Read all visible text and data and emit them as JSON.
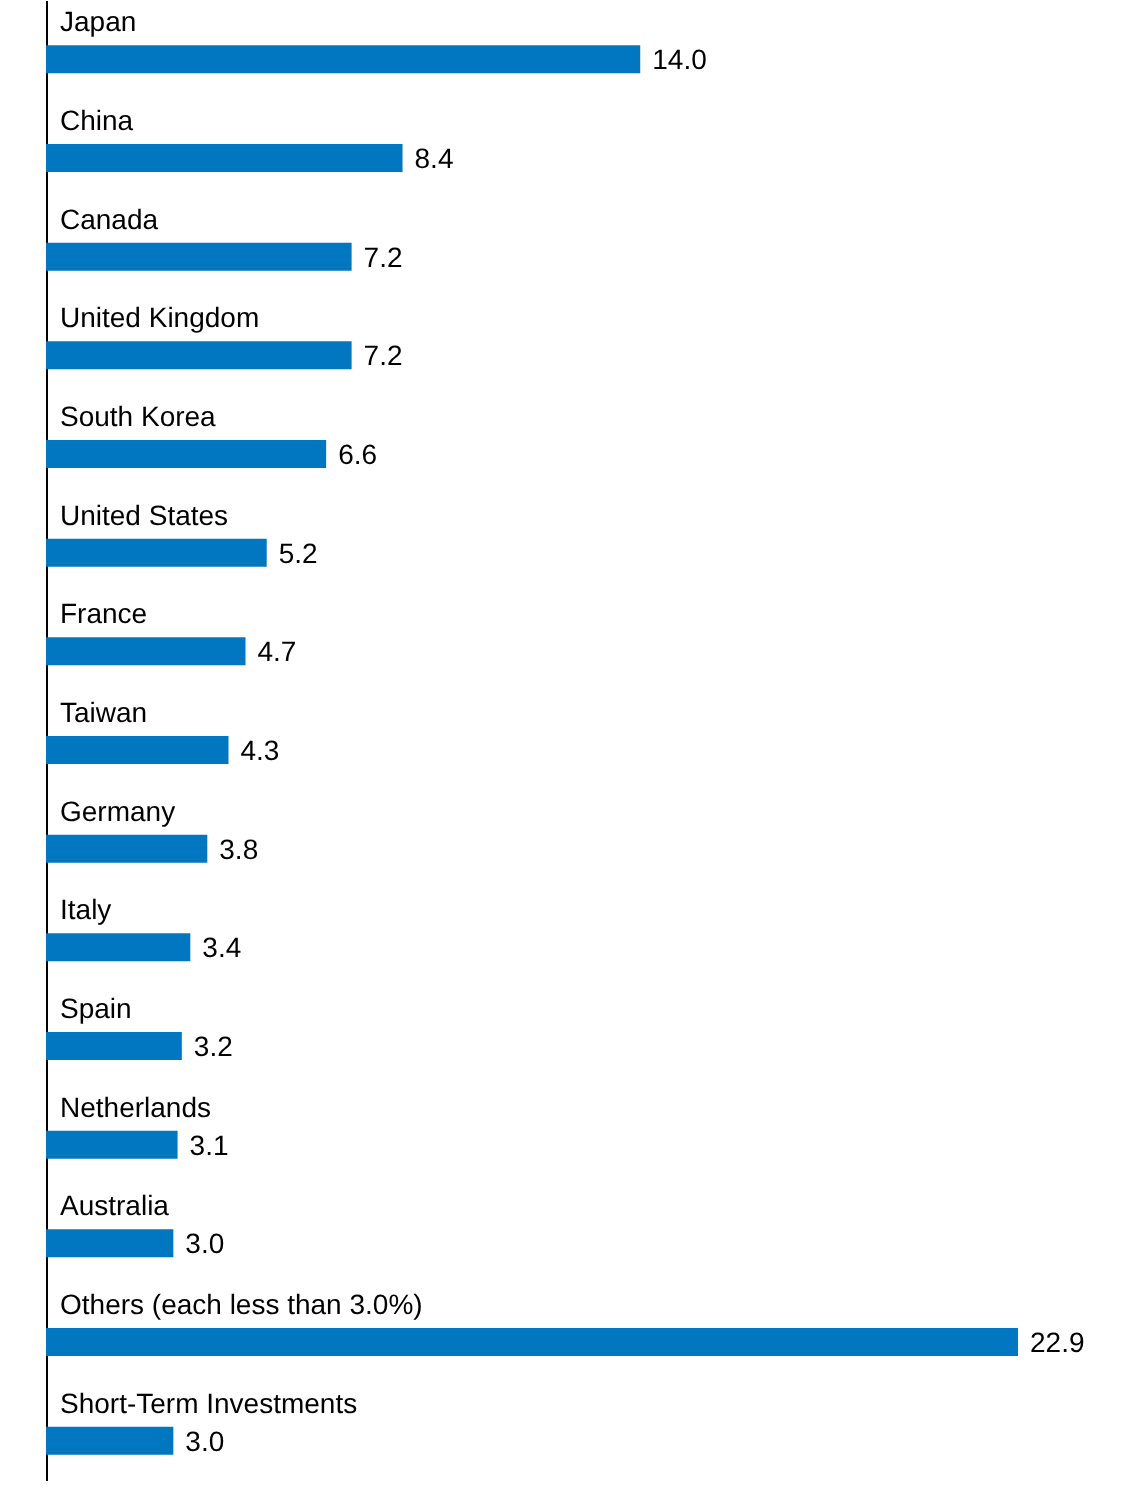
{
  "chart_data": {
    "type": "bar",
    "orientation": "horizontal",
    "color": "#0077c0",
    "categories": [
      "Japan",
      "China",
      "Canada",
      "United Kingdom",
      "South Korea",
      "United States",
      "France",
      "Taiwan",
      "Germany",
      "Italy",
      "Spain",
      "Netherlands",
      "Australia",
      "Others (each less than 3.0%)",
      "Short-Term Investments"
    ],
    "values": [
      14.0,
      8.4,
      7.2,
      7.2,
      6.6,
      5.2,
      4.7,
      4.3,
      3.8,
      3.4,
      3.2,
      3.1,
      3.0,
      22.9,
      3.0
    ],
    "value_labels": [
      "14.0",
      "8.4",
      "7.2",
      "7.2",
      "6.6",
      "5.2",
      "4.7",
      "4.3",
      "3.8",
      "3.4",
      "3.2",
      "3.1",
      "3.0",
      "22.9",
      "3.0"
    ]
  }
}
